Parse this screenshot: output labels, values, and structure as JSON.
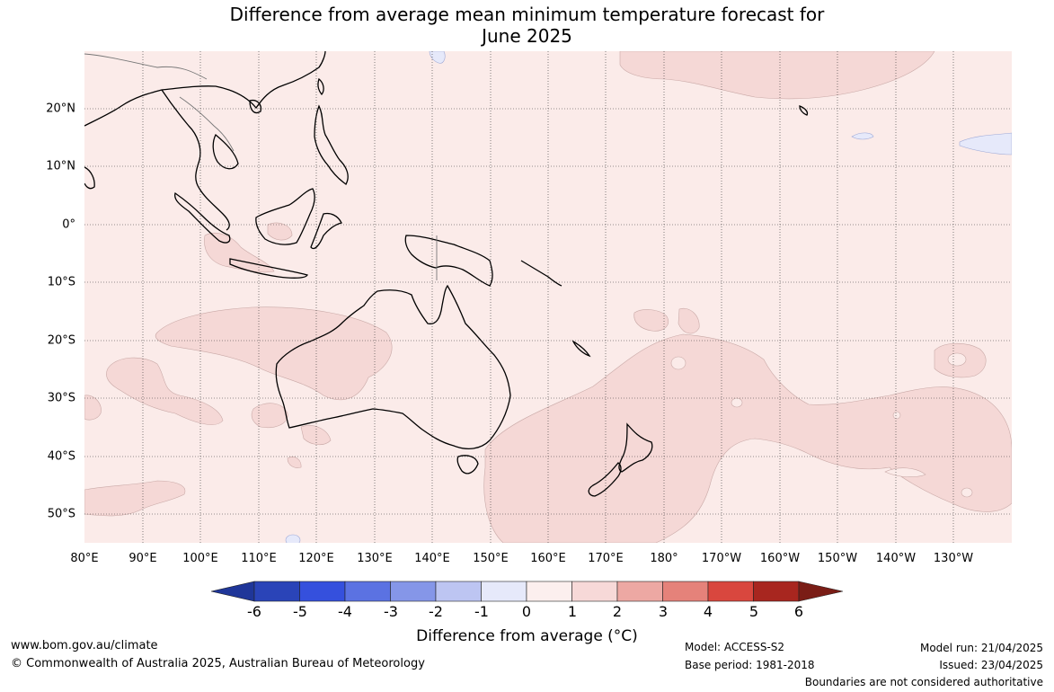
{
  "title_line1": "Difference from average mean minimum temperature forecast for",
  "title_line2": "June 2025",
  "lon_labels": [
    "80°E",
    "90°E",
    "100°E",
    "110°E",
    "120°E",
    "130°E",
    "140°E",
    "150°E",
    "160°E",
    "170°E",
    "180°",
    "170°W",
    "160°W",
    "150°W",
    "140°W",
    "130°W"
  ],
  "lat_labels": [
    "20°N",
    "10°N",
    "0°",
    "10°S",
    "20°S",
    "30°S",
    "40°S",
    "50°S"
  ],
  "colorbar": {
    "ticks": [
      "-6",
      "-5",
      "-4",
      "-3",
      "-2",
      "-1",
      "0",
      "1",
      "2",
      "3",
      "4",
      "5",
      "6"
    ],
    "colors": [
      "#1f3699",
      "#2a44b8",
      "#3550dd",
      "#5b72e2",
      "#8596e8",
      "#bdc5f2",
      "#e6e9fa",
      "#fcefee",
      "#f7d9d8",
      "#eda8a3",
      "#e5827a",
      "#d9473e",
      "#a8261f",
      "#7a1d16"
    ],
    "label": "Difference from average (°C)"
  },
  "map_colors": {
    "background": "#fbebe9",
    "warm_region": "#f5d8d6",
    "cool_region": "#e6e9fa",
    "land_line": "#000000"
  },
  "footer": {
    "website": "www.bom.gov.au/climate",
    "copyright": "© Commonwealth of Australia 2025, Australian Bureau of Meteorology",
    "model": "Model: ACCESS-S2",
    "base_period": "Base period: 1981-2018",
    "model_run": "Model run: 21/04/2025",
    "issued": "Issued: 23/04/2025",
    "disclaimer": "Boundaries are not considered authoritative"
  }
}
